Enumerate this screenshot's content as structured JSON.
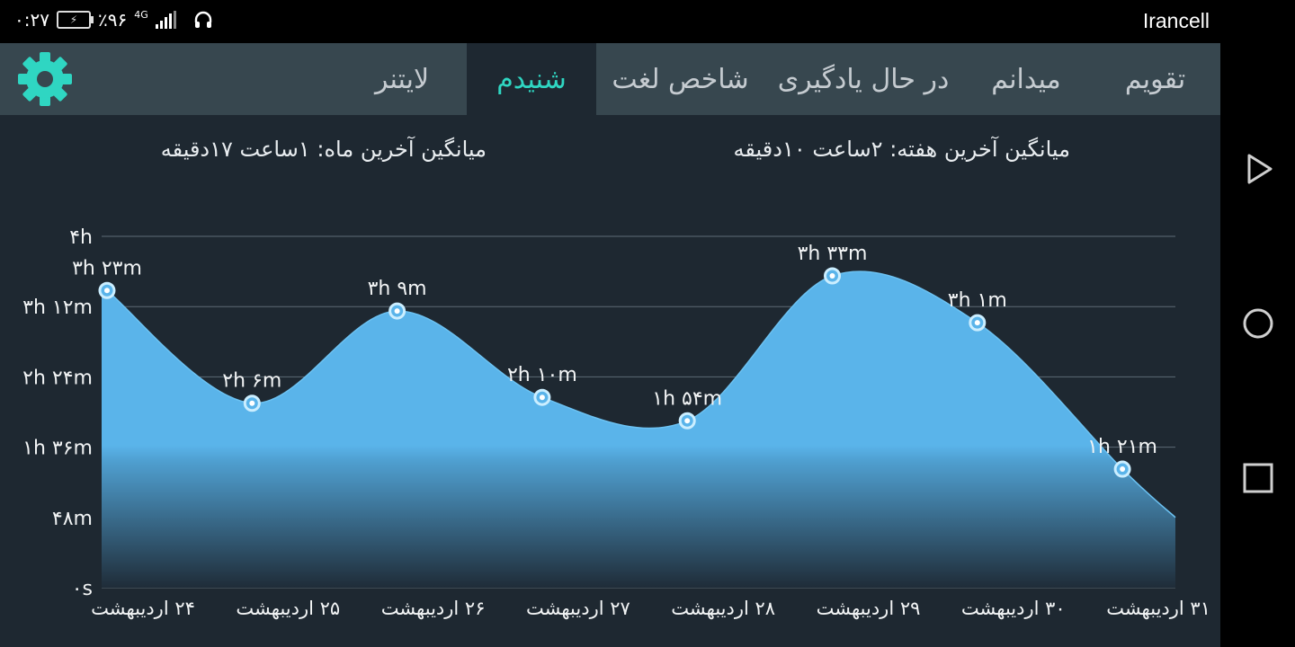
{
  "status_bar": {
    "time": "۰:۲۷",
    "battery_percent": "٪۹۶",
    "network": "4G",
    "carrier": "Irancell"
  },
  "tabs": [
    {
      "label": "تقویم",
      "active": false
    },
    {
      "label": "میدانم",
      "active": false
    },
    {
      "label": "در حال یادگیری",
      "active": false
    },
    {
      "label": "شاخص لغت",
      "active": false
    },
    {
      "label": "شنیدم",
      "active": true
    },
    {
      "label": "لایتنر",
      "active": false
    }
  ],
  "stats": {
    "week_average": "میانگین آخرین هفته: ۲ساعت  ۱۰دقیقه",
    "month_average": "میانگین آخرین ماه: ۱ساعت  ۱۷دقیقه"
  },
  "colors": {
    "accent": "#2fd6c2",
    "tabbar": "#37474f",
    "background": "#1e2831",
    "area_fill": "#5ab4ea",
    "point_stroke": "#cbeeff"
  },
  "chart_data": {
    "type": "area",
    "y_unit": "minutes",
    "ylim": [
      0,
      240
    ],
    "y_ticks": [
      {
        "value": 0,
        "label": "۰s"
      },
      {
        "value": 48,
        "label": "۴۸m"
      },
      {
        "value": 96,
        "label": "۱h ۳۶m"
      },
      {
        "value": 144,
        "label": "۲h ۲۴m"
      },
      {
        "value": 192,
        "label": "۳h ۱۲m"
      },
      {
        "value": 240,
        "label": "۴h"
      }
    ],
    "categories": [
      "۲۴ اردیبهشت",
      "۲۵ اردیبهشت",
      "۲۶ اردیبهشت",
      "۲۷ اردیبهشت",
      "۲۸ اردیبهشت",
      "۲۹ اردیبهشت",
      "۳۰ اردیبهشت",
      "۳۱ اردیبهشت"
    ],
    "values": [
      203,
      126,
      189,
      130,
      114,
      213,
      181,
      81
    ],
    "data_labels": [
      "۳h ۲۳m",
      "۲h ۶m",
      "۳h ۹m",
      "۲h ۱۰m",
      "۱h ۵۴m",
      "۳h ۳۳m",
      "۳h ۱m",
      "۱h ۲۱m"
    ],
    "grid": true
  }
}
